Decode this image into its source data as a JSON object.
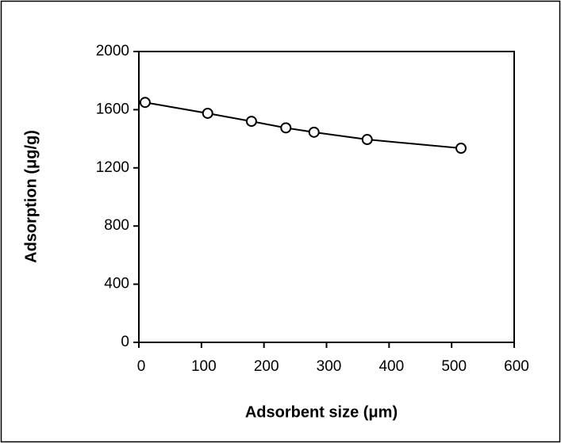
{
  "chart_data": {
    "type": "line",
    "x_label": "Adsorbent size (μm)",
    "y_label": "Adsorption (μg/g)",
    "x": [
      10,
      110,
      180,
      235,
      280,
      365,
      515
    ],
    "values": [
      1650,
      1575,
      1520,
      1475,
      1445,
      1395,
      1335
    ],
    "color": "#000000",
    "xlim": [
      0,
      600
    ],
    "xticks": [
      0,
      100,
      200,
      300,
      400,
      500,
      600
    ],
    "ylim": [
      0,
      2000
    ],
    "yticks": [
      0,
      400,
      800,
      1200,
      1600,
      2000
    ],
    "grid": false
  }
}
